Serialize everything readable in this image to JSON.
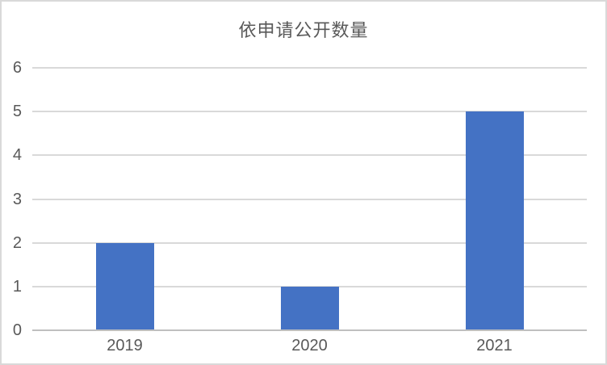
{
  "chart_data": {
    "type": "bar",
    "title": "依申请公开数量",
    "categories": [
      "2019",
      "2020",
      "2021"
    ],
    "values": [
      2,
      1,
      5
    ],
    "xlabel": "",
    "ylabel": "",
    "ylim": [
      0,
      6
    ],
    "yticks": [
      0,
      1,
      2,
      3,
      4,
      5,
      6
    ],
    "grid": true,
    "legend": "none",
    "colors": {
      "bar": "#4472c4",
      "gridline": "#d9d9d9",
      "axis_line": "#bfbfbf",
      "text": "#595959",
      "canvas_border": "#d9d9d9",
      "background": "#ffffff"
    }
  }
}
